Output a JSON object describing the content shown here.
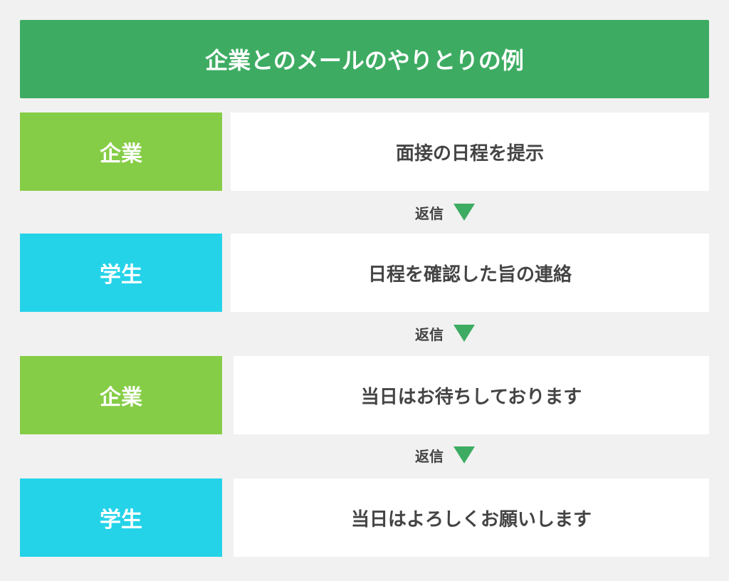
{
  "title": "企業とのメールのやりとりの例",
  "colors": {
    "title": "#3dac62",
    "company": "#85cd46",
    "student": "#25d3e9",
    "arrow": "#3dac62"
  },
  "reply_label": "返信",
  "rows": [
    {
      "sender": "企業",
      "message": "面接の日程を提示",
      "type": "company"
    },
    {
      "sender": "学生",
      "message": "日程を確認した旨の連絡",
      "type": "student"
    },
    {
      "sender": "企業",
      "message": "当日はお待ちしております",
      "type": "company"
    },
    {
      "sender": "学生",
      "message": "当日はよろしくお願いします",
      "type": "student"
    }
  ]
}
